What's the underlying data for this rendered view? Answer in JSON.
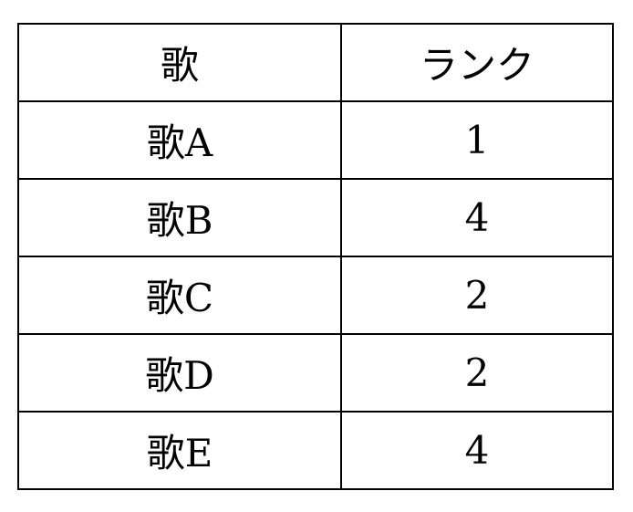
{
  "table": {
    "headers": [
      "歌",
      "ランク"
    ],
    "rows": [
      [
        "歌A",
        "1"
      ],
      [
        "歌B",
        "4"
      ],
      [
        "歌C",
        "2"
      ],
      [
        "歌D",
        "2"
      ],
      [
        "歌E",
        "4"
      ]
    ]
  }
}
